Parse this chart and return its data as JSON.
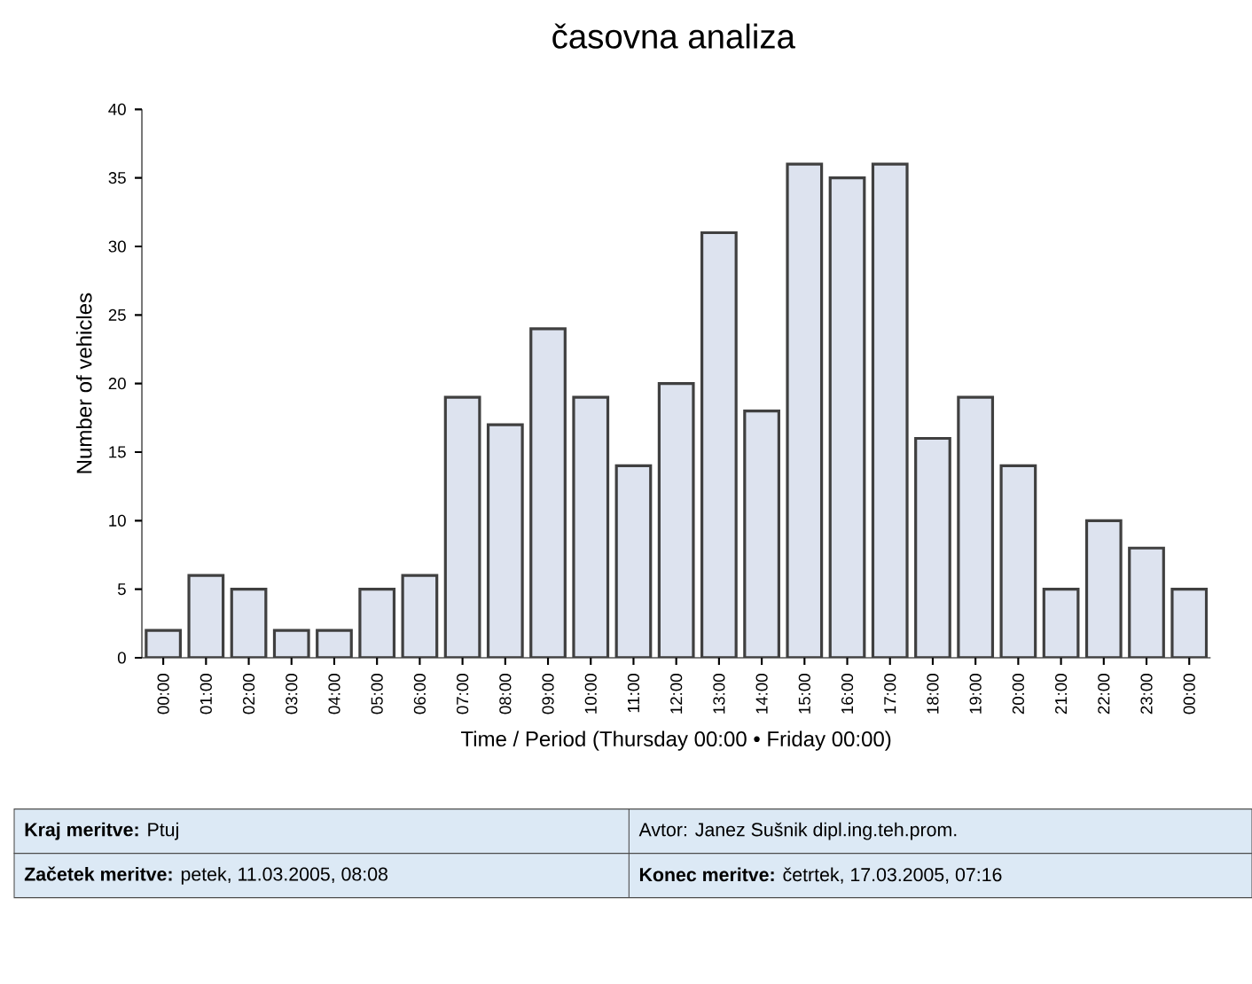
{
  "chart_data": {
    "type": "bar",
    "title": "časovna analiza",
    "xlabel": "Time / Period (Thursday 00:00 • Friday 00:00)",
    "ylabel": "Number of vehicles",
    "categories": [
      "00:00",
      "01:00",
      "02:00",
      "03:00",
      "04:00",
      "05:00",
      "06:00",
      "07:00",
      "08:00",
      "09:00",
      "10:00",
      "11:00",
      "12:00",
      "13:00",
      "14:00",
      "15:00",
      "16:00",
      "17:00",
      "18:00",
      "19:00",
      "20:00",
      "21:00",
      "22:00",
      "23:00",
      "00:00"
    ],
    "values": [
      2,
      6,
      5,
      2,
      2,
      5,
      6,
      19,
      17,
      24,
      19,
      14,
      20,
      31,
      18,
      36,
      35,
      36,
      16,
      19,
      14,
      5,
      10,
      8,
      5
    ],
    "color": "#dde3ef",
    "ylim": [
      0,
      40
    ],
    "yticks": [
      0,
      5,
      10,
      15,
      20,
      25,
      30,
      35,
      40
    ],
    "annotations": [
      "**Kraj meritve:** Ptuj",
      "Avtor: Janez Sušnik dipl.ing.teh.prom.",
      "**Začetek meritve:** petek, 11.03.2005, 08:08",
      "**Konec meritve:** četrtek, 17.03.2005, 07:16"
    ]
  }
}
